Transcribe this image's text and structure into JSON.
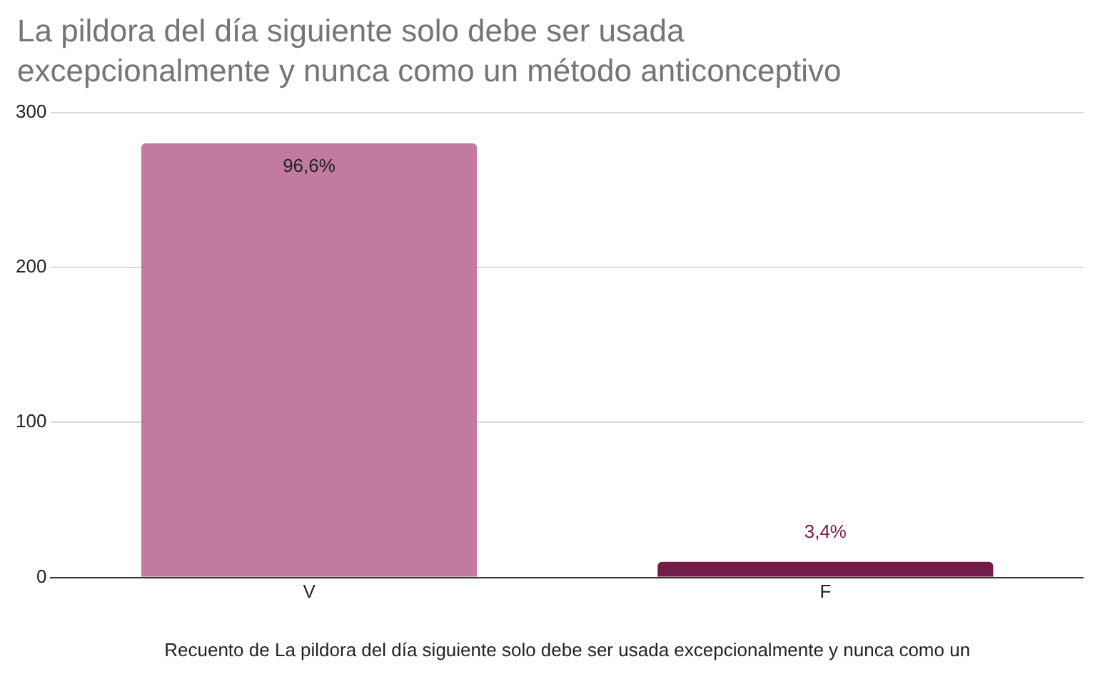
{
  "chart_data": {
    "type": "bar",
    "title": "La pildora del día siguiente solo debe ser usada excepcionalmente y nunca como un método anticonceptivo",
    "xlabel": "Recuento de La pildora del día siguiente solo debe ser usada excepcionalmente y nunca como un",
    "categories": [
      "V",
      "F"
    ],
    "values": [
      280,
      10
    ],
    "colors": [
      "#c27ba0",
      "#741b47"
    ],
    "annotations": [
      {
        "text": "96,6%",
        "x": "V",
        "y": 280
      },
      {
        "text": "3,4%",
        "x": "F",
        "y": 10
      }
    ],
    "ylim": [
      0,
      300
    ],
    "yticks": [
      0,
      100,
      200,
      300
    ],
    "grid": "y",
    "legend": false
  }
}
